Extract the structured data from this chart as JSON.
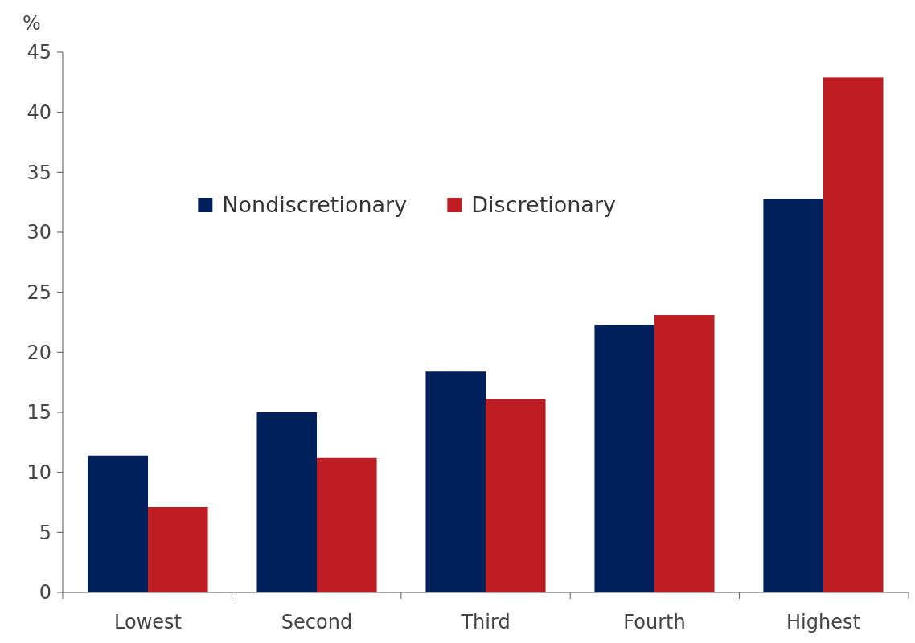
{
  "chart_data": {
    "type": "bar",
    "ylabel": "%",
    "categories": [
      "Lowest",
      "Second",
      "Third",
      "Fourth",
      "Highest"
    ],
    "series": [
      {
        "name": "Nondiscretionary",
        "color": "#00205b",
        "values": [
          11.4,
          15.0,
          18.4,
          22.3,
          32.8
        ]
      },
      {
        "name": "Discretionary",
        "color": "#be1e23",
        "values": [
          7.1,
          11.2,
          16.1,
          23.1,
          42.9
        ]
      }
    ],
    "ylim": [
      0,
      45
    ],
    "yticks": [
      0,
      5,
      10,
      15,
      20,
      25,
      30,
      35,
      40,
      45
    ],
    "grid": false,
    "legend": "top"
  }
}
